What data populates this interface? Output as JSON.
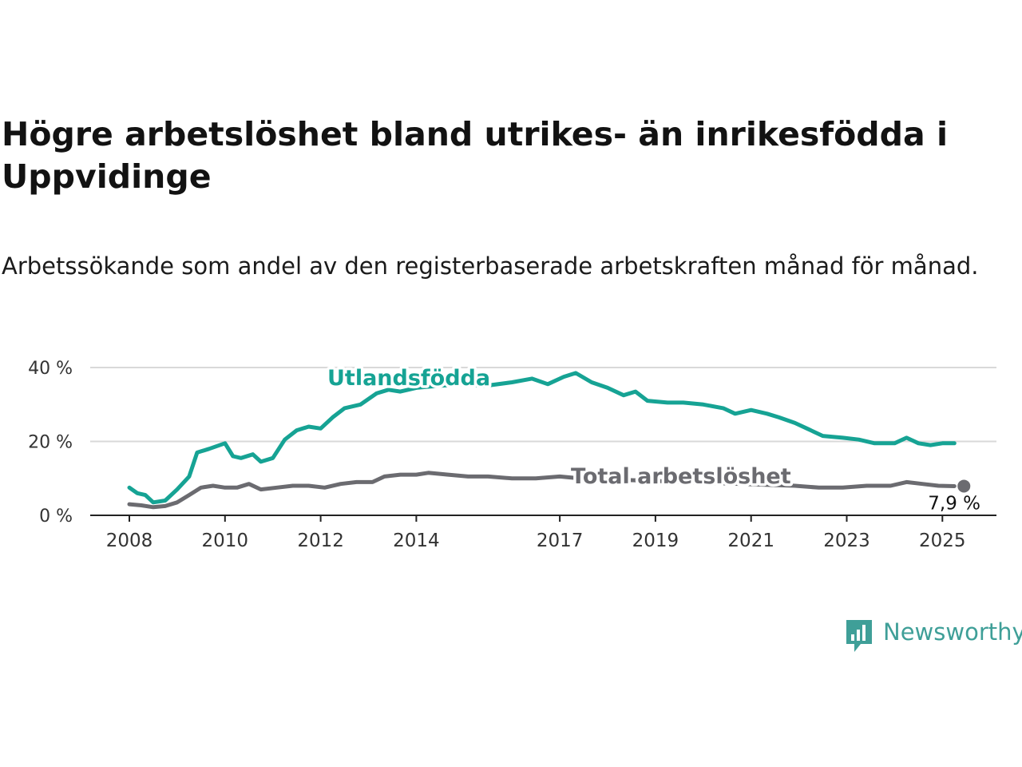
{
  "title": "Högre arbetslöshet bland utrikes- än inrikesfödda i Uppvidinge",
  "subtitle": "Arbetssökande som andel av den registerbaserade arbetskraften månad för månad.",
  "brand": {
    "name": "Newsworthy",
    "icon": "bar-chart-bubble-icon"
  },
  "chart_data": {
    "type": "line",
    "title": "Högre arbetslöshet bland utrikes- än inrikesfödda i Uppvidinge",
    "subtitle": "Arbetssökande som andel av den registerbaserade arbetskraften månad för månad.",
    "xlabel": "",
    "ylabel": "",
    "ylim": [
      0,
      40
    ],
    "xlim": [
      "2008-01",
      "2025-04"
    ],
    "grid": true,
    "y_ticks": [
      0,
      20,
      40
    ],
    "y_tick_labels": [
      "0 %",
      "20 %",
      "40 %"
    ],
    "x_ticks": [
      2008,
      2010,
      2012,
      2014,
      2017,
      2019,
      2021,
      2023,
      2025
    ],
    "x_tick_labels": [
      "2008",
      "2010",
      "2012",
      "2014",
      "2017",
      "2019",
      "2021",
      "2023",
      "2025"
    ],
    "series": [
      {
        "name": "Utlandsfödda",
        "color": "#16a394",
        "points": [
          [
            "2008-01",
            7.5
          ],
          [
            "2008-03",
            6.0
          ],
          [
            "2008-05",
            5.5
          ],
          [
            "2008-07",
            3.5
          ],
          [
            "2008-10",
            4.0
          ],
          [
            "2009-01",
            7.0
          ],
          [
            "2009-04",
            10.5
          ],
          [
            "2009-06",
            17.0
          ],
          [
            "2009-09",
            18.0
          ],
          [
            "2010-01",
            19.5
          ],
          [
            "2010-03",
            16.0
          ],
          [
            "2010-05",
            15.5
          ],
          [
            "2010-08",
            16.5
          ],
          [
            "2010-10",
            14.5
          ],
          [
            "2011-01",
            15.5
          ],
          [
            "2011-04",
            20.5
          ],
          [
            "2011-07",
            23.0
          ],
          [
            "2011-10",
            24.0
          ],
          [
            "2012-01",
            23.5
          ],
          [
            "2012-04",
            26.5
          ],
          [
            "2012-07",
            29.0
          ],
          [
            "2012-11",
            30.0
          ],
          [
            "2013-03",
            33.0
          ],
          [
            "2013-06",
            34.0
          ],
          [
            "2013-09",
            33.5
          ],
          [
            "2014-01",
            34.5
          ],
          [
            "2014-06",
            35.0
          ],
          [
            "2015-01",
            35.5
          ],
          [
            "2015-06",
            35.0
          ],
          [
            "2016-01",
            36.0
          ],
          [
            "2016-06",
            37.0
          ],
          [
            "2016-10",
            35.5
          ],
          [
            "2017-02",
            37.5
          ],
          [
            "2017-05",
            38.5
          ],
          [
            "2017-09",
            36.0
          ],
          [
            "2018-01",
            34.5
          ],
          [
            "2018-05",
            32.5
          ],
          [
            "2018-08",
            33.5
          ],
          [
            "2018-11",
            31.0
          ],
          [
            "2019-04",
            30.5
          ],
          [
            "2019-08",
            30.5
          ],
          [
            "2020-01",
            30.0
          ],
          [
            "2020-06",
            29.0
          ],
          [
            "2020-09",
            27.5
          ],
          [
            "2021-01",
            28.5
          ],
          [
            "2021-05",
            27.5
          ],
          [
            "2021-08",
            26.5
          ],
          [
            "2021-12",
            25.0
          ],
          [
            "2022-03",
            23.5
          ],
          [
            "2022-07",
            21.5
          ],
          [
            "2022-12",
            21.0
          ],
          [
            "2023-04",
            20.5
          ],
          [
            "2023-08",
            19.5
          ],
          [
            "2024-01",
            19.5
          ],
          [
            "2024-04",
            21.0
          ],
          [
            "2024-07",
            19.5
          ],
          [
            "2024-10",
            19.0
          ],
          [
            "2025-01",
            19.5
          ],
          [
            "2025-04",
            19.5
          ]
        ]
      },
      {
        "name": "Total arbetslöshet",
        "color": "#6b6b70",
        "points": [
          [
            "2008-01",
            3.0
          ],
          [
            "2008-04",
            2.7
          ],
          [
            "2008-07",
            2.2
          ],
          [
            "2008-10",
            2.5
          ],
          [
            "2009-01",
            3.5
          ],
          [
            "2009-04",
            5.5
          ],
          [
            "2009-07",
            7.5
          ],
          [
            "2009-10",
            8.0
          ],
          [
            "2010-01",
            7.5
          ],
          [
            "2010-04",
            7.5
          ],
          [
            "2010-07",
            8.5
          ],
          [
            "2010-10",
            7.0
          ],
          [
            "2011-02",
            7.5
          ],
          [
            "2011-06",
            8.0
          ],
          [
            "2011-10",
            8.0
          ],
          [
            "2012-02",
            7.5
          ],
          [
            "2012-06",
            8.5
          ],
          [
            "2012-10",
            9.0
          ],
          [
            "2013-02",
            9.0
          ],
          [
            "2013-05",
            10.5
          ],
          [
            "2013-09",
            11.0
          ],
          [
            "2014-01",
            11.0
          ],
          [
            "2014-04",
            11.5
          ],
          [
            "2014-09",
            11.0
          ],
          [
            "2015-02",
            10.5
          ],
          [
            "2015-07",
            10.5
          ],
          [
            "2016-01",
            10.0
          ],
          [
            "2016-07",
            10.0
          ],
          [
            "2017-01",
            10.5
          ],
          [
            "2017-06",
            10.0
          ],
          [
            "2021-12",
            8.0
          ],
          [
            "2022-06",
            7.5
          ],
          [
            "2022-12",
            7.5
          ],
          [
            "2023-06",
            8.0
          ],
          [
            "2023-12",
            8.0
          ],
          [
            "2024-04",
            9.0
          ],
          [
            "2024-08",
            8.5
          ],
          [
            "2024-12",
            8.0
          ],
          [
            "2025-04",
            7.9
          ]
        ]
      }
    ],
    "series_labels": [
      "Utlandsfödda",
      "Total arbetslöshet"
    ],
    "annotations": [
      {
        "series": "Total arbetslöshet",
        "x": "2025-04",
        "y": 7.9,
        "text": "7,9 %"
      }
    ]
  }
}
